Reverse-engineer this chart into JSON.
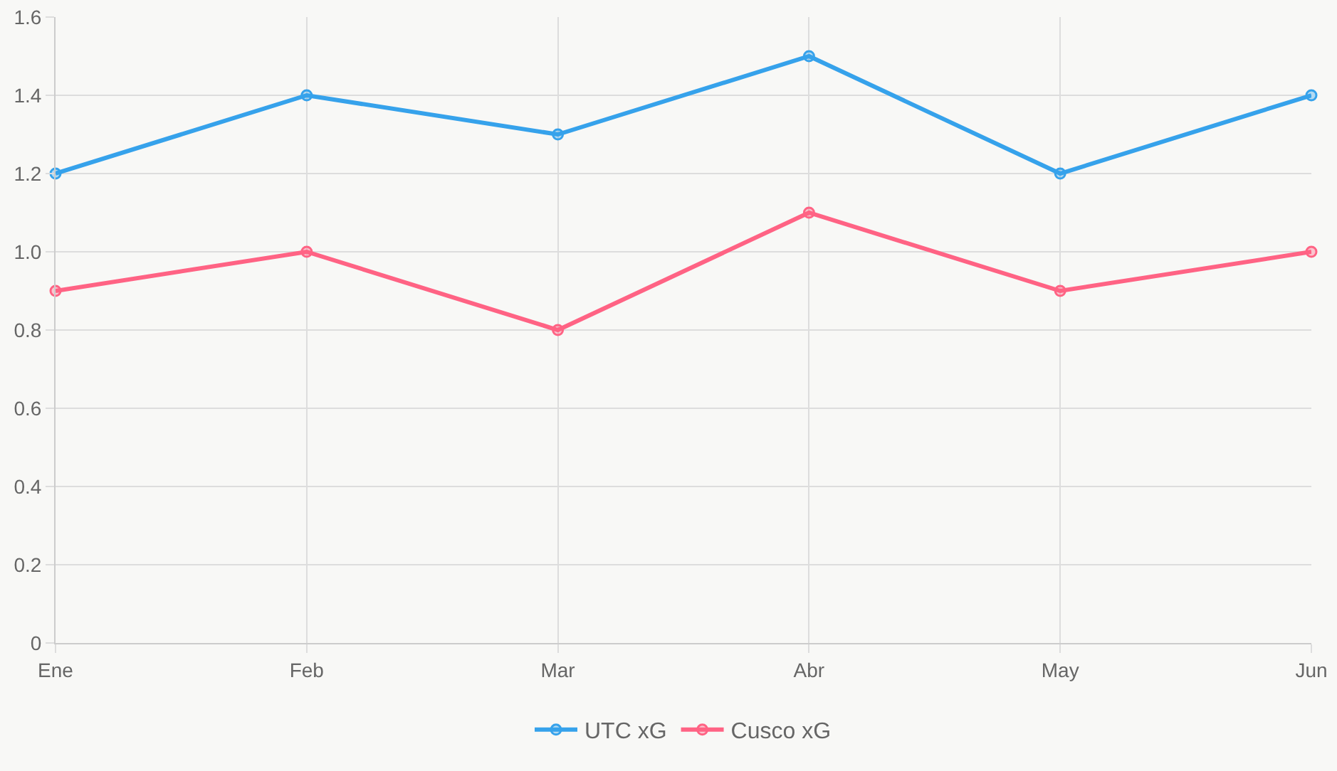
{
  "chart_data": {
    "type": "line",
    "categories": [
      "Ene",
      "Feb",
      "Mar",
      "Abr",
      "May",
      "Jun"
    ],
    "series": [
      {
        "name": "UTC xG",
        "color": "#36a2eb",
        "values": [
          1.2,
          1.4,
          1.3,
          1.5,
          1.2,
          1.4
        ]
      },
      {
        "name": "Cusco xG",
        "color": "#ff6384",
        "values": [
          0.9,
          1.0,
          0.8,
          1.1,
          0.9,
          1.0
        ]
      }
    ],
    "ylim": [
      0,
      1.6
    ],
    "yticks": [
      0,
      0.2,
      0.4,
      0.6,
      0.8,
      {
        "value": 1,
        "label": "1.0"
      },
      1.2,
      1.4,
      1.6
    ],
    "grid": true,
    "legend": "bottom",
    "marker": "circle",
    "line_style": "solid"
  }
}
